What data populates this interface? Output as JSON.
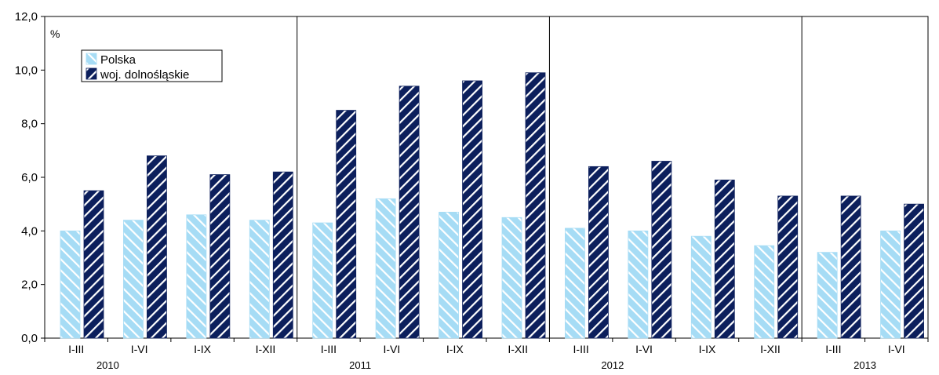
{
  "chart_data": {
    "type": "bar",
    "ylabel": "%",
    "ylim": [
      0,
      12
    ],
    "yticks": [
      "0,0",
      "2,0",
      "4,0",
      "6,0",
      "8,0",
      "10,0",
      "12,0"
    ],
    "categories": [
      "I-III",
      "I-VI",
      "I-IX",
      "I-XII",
      "I-III",
      "I-VI",
      "I-IX",
      "I-XII",
      "I-III",
      "I-VI",
      "I-IX",
      "I-XII",
      "I-III",
      "I-VI"
    ],
    "groups": [
      {
        "label": "2010",
        "count": 4
      },
      {
        "label": "2011",
        "count": 4
      },
      {
        "label": "2012",
        "count": 4
      },
      {
        "label": "2013",
        "count": 2
      }
    ],
    "series": [
      {
        "name": "Polska",
        "values": [
          4.0,
          4.4,
          4.6,
          4.4,
          4.3,
          5.2,
          4.7,
          4.5,
          4.1,
          4.0,
          3.8,
          3.45,
          3.2,
          4.0
        ]
      },
      {
        "name": "woj. dolnośląskie",
        "values": [
          5.5,
          6.8,
          6.1,
          6.2,
          8.5,
          9.4,
          9.6,
          9.9,
          6.4,
          6.6,
          5.9,
          5.3,
          5.3,
          5.0
        ]
      }
    ],
    "legend_position": "top-left",
    "grid": false,
    "colors": {
      "Polska": "#a6dcf5",
      "woj. dolnośląskie": "#0c1f5c"
    }
  }
}
